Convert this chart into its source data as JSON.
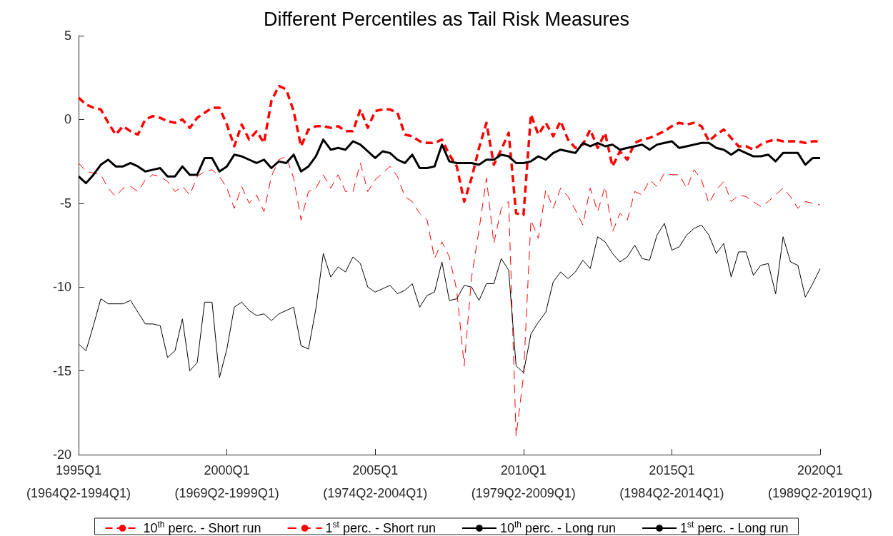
{
  "chart_data": {
    "type": "line",
    "title": "Different Percentiles as Tail Risk Measures",
    "categories": [
      "1995Q1\n(1964Q2-1994Q1)",
      null,
      null,
      null,
      null,
      null,
      null,
      null,
      null,
      null,
      null,
      null,
      null,
      null,
      null,
      null,
      null,
      null,
      null,
      null,
      "2000Q1\n(1969Q2-1999Q1)",
      null,
      null,
      null,
      null,
      null,
      null,
      null,
      null,
      null,
      null,
      null,
      null,
      null,
      null,
      null,
      null,
      null,
      null,
      null,
      "2005Q1\n(1974Q2-2004Q1)",
      null,
      null,
      null,
      null,
      null,
      null,
      null,
      null,
      null,
      null,
      null,
      null,
      null,
      null,
      null,
      null,
      null,
      null,
      null,
      "2010Q1\n(1979Q2-2009Q1)",
      null,
      null,
      null,
      null,
      null,
      null,
      null,
      null,
      null,
      null,
      null,
      null,
      null,
      null,
      null,
      null,
      null,
      null,
      null,
      "2015Q1\n(1984Q2-2014Q1)",
      null,
      null,
      null,
      null,
      null,
      null,
      null,
      null,
      null,
      null,
      null,
      null,
      null,
      null,
      null,
      null,
      null,
      null,
      null,
      "2020Q1\n(1989Q2-2019Q1)"
    ],
    "ylim": [
      -20,
      5
    ],
    "yticks": [
      5,
      0,
      -5,
      -10,
      -15,
      -20
    ],
    "grid": false,
    "legend": "bottom",
    "series": [
      {
        "name": "10$^{th}$ perc. - Short run",
        "color": "#ff0000",
        "line_style": "dashed",
        "values": [
          1.3,
          0.9,
          0.7,
          0.6,
          -0.2,
          -0.9,
          -0.4,
          -0.7,
          -0.9,
          0.0,
          0.2,
          0.1,
          -0.1,
          -0.2,
          0.0,
          -0.5,
          0.1,
          0.4,
          0.7,
          0.7,
          -0.3,
          -1.6,
          -0.3,
          -1.2,
          -0.7,
          -1.4,
          1.1,
          2.0,
          1.8,
          0.5,
          -1.6,
          -0.6,
          -0.4,
          -0.4,
          -0.5,
          -0.4,
          -0.7,
          -0.7,
          0.6,
          -0.5,
          0.5,
          0.6,
          0.6,
          0.4,
          -0.9,
          -1.0,
          -1.3,
          -1.4,
          -1.4,
          -1.2,
          -2.1,
          -2.8,
          -4.9,
          -3.5,
          -1.7,
          -0.2,
          -2.7,
          -1.8,
          -0.8,
          -5.6,
          -5.7,
          0.3,
          -0.9,
          -0.2,
          -1.0,
          -0.1,
          -1.2,
          -1.7,
          -1.5,
          -0.6,
          -1.7,
          -0.8,
          -2.8,
          -1.9,
          -2.4,
          -1.4,
          -1.2,
          -1.1,
          -0.9,
          -0.7,
          -0.4,
          -0.2,
          -0.3,
          -0.2,
          -0.4,
          -1.3,
          -0.9,
          -0.6,
          -1.1,
          -1.6,
          -1.6,
          -1.8,
          -1.5,
          -1.3,
          -1.2,
          -1.3,
          -1.3,
          -1.3,
          -1.4,
          -1.3,
          -1.3
        ]
      },
      {
        "name": "1$^{st}$ perc. - Short run",
        "color": "#ff0000",
        "line_style": "dashed",
        "values": [
          -2.6,
          -3.1,
          -3.2,
          -3.3,
          -4.1,
          -4.6,
          -4.1,
          -4.0,
          -4.3,
          -3.6,
          -3.3,
          -3.4,
          -3.7,
          -4.3,
          -4.0,
          -4.5,
          -3.4,
          -3.1,
          -3.0,
          -3.4,
          -4.1,
          -5.3,
          -4.0,
          -5.0,
          -4.5,
          -5.5,
          -3.4,
          -2.4,
          -2.2,
          -3.5,
          -6.0,
          -4.3,
          -4.1,
          -3.3,
          -4.1,
          -3.3,
          -4.3,
          -4.3,
          -2.6,
          -4.3,
          -3.6,
          -3.2,
          -2.8,
          -3.4,
          -4.6,
          -4.9,
          -5.6,
          -6.0,
          -8.3,
          -7.3,
          -8.2,
          -10.2,
          -14.7,
          -9.4,
          -6.6,
          -3.5,
          -7.4,
          -5.3,
          -4.9,
          -18.9,
          -15.3,
          -6.0,
          -7.1,
          -4.2,
          -5.3,
          -4.1,
          -4.6,
          -5.4,
          -6.3,
          -4.1,
          -5.5,
          -4.0,
          -6.7,
          -5.6,
          -6.0,
          -4.3,
          -4.5,
          -3.6,
          -4.0,
          -3.2,
          -3.3,
          -3.3,
          -4.1,
          -3.0,
          -3.6,
          -5.0,
          -4.2,
          -3.7,
          -4.9,
          -4.5,
          -4.6,
          -4.9,
          -5.2,
          -4.9,
          -4.5,
          -4.1,
          -4.6,
          -5.3,
          -4.9,
          -5.0,
          -5.1
        ]
      },
      {
        "name": "10$^{th}$ perc. - Long run",
        "color": "#000000",
        "line_style": "solid",
        "values": [
          -3.4,
          -3.8,
          -3.3,
          -2.7,
          -2.4,
          -2.8,
          -2.8,
          -2.6,
          -2.8,
          -3.1,
          -3.0,
          -2.9,
          -3.4,
          -3.4,
          -2.8,
          -3.3,
          -3.3,
          -2.3,
          -2.3,
          -3.1,
          -2.8,
          -2.1,
          -2.2,
          -2.4,
          -2.6,
          -2.4,
          -2.9,
          -2.5,
          -2.6,
          -2.1,
          -3.1,
          -2.8,
          -2.2,
          -1.2,
          -1.8,
          -1.7,
          -1.8,
          -1.3,
          -1.5,
          -1.9,
          -2.3,
          -1.9,
          -2.0,
          -2.4,
          -2.6,
          -2.1,
          -2.9,
          -2.9,
          -2.8,
          -1.5,
          -2.5,
          -2.6,
          -2.6,
          -2.6,
          -2.7,
          -2.4,
          -2.4,
          -2.1,
          -2.2,
          -2.6,
          -2.6,
          -2.5,
          -2.2,
          -2.4,
          -2.0,
          -1.8,
          -1.9,
          -2.0,
          -1.4,
          -1.6,
          -1.4,
          -1.6,
          -1.5,
          -1.8,
          -1.7,
          -1.6,
          -1.5,
          -1.8,
          -1.5,
          -1.4,
          -1.3,
          -1.7,
          -1.6,
          -1.5,
          -1.4,
          -1.4,
          -1.7,
          -1.8,
          -2.1,
          -1.8,
          -2.0,
          -2.2,
          -2.2,
          -2.1,
          -2.5,
          -2.0,
          -2.0,
          -2.0,
          -2.7,
          -2.3,
          -2.3
        ]
      },
      {
        "name": "1$^{st}$ perc. - Long run",
        "color": "#000000",
        "line_style": "solid",
        "values": [
          -13.4,
          -13.8,
          -12.3,
          -10.7,
          -11.0,
          -11.0,
          -11.0,
          -10.8,
          -11.5,
          -12.2,
          -12.2,
          -12.3,
          -14.2,
          -13.8,
          -11.9,
          -15.0,
          -14.5,
          -10.9,
          -10.9,
          -15.4,
          -13.7,
          -11.2,
          -10.9,
          -11.4,
          -11.7,
          -11.6,
          -12.0,
          -11.6,
          -11.4,
          -11.2,
          -13.5,
          -13.7,
          -11.3,
          -8.0,
          -9.4,
          -8.8,
          -9.1,
          -8.2,
          -8.6,
          -10.0,
          -10.3,
          -10.1,
          -9.9,
          -10.4,
          -10.2,
          -9.8,
          -11.2,
          -10.5,
          -10.3,
          -8.5,
          -10.8,
          -10.7,
          -9.9,
          -10.0,
          -10.8,
          -9.8,
          -9.8,
          -8.3,
          -9.0,
          -14.7,
          -15.1,
          -12.8,
          -12.1,
          -11.5,
          -9.7,
          -9.1,
          -9.5,
          -9.1,
          -8.4,
          -8.9,
          -7.0,
          -7.3,
          -8.0,
          -8.5,
          -8.2,
          -7.5,
          -8.3,
          -8.4,
          -6.9,
          -6.2,
          -7.8,
          -7.6,
          -6.9,
          -6.5,
          -6.3,
          -6.9,
          -8.0,
          -7.4,
          -9.4,
          -7.9,
          -7.9,
          -9.3,
          -8.7,
          -8.6,
          -10.4,
          -7.0,
          -8.5,
          -8.7,
          -10.6,
          -9.8,
          -8.9
        ]
      }
    ]
  }
}
